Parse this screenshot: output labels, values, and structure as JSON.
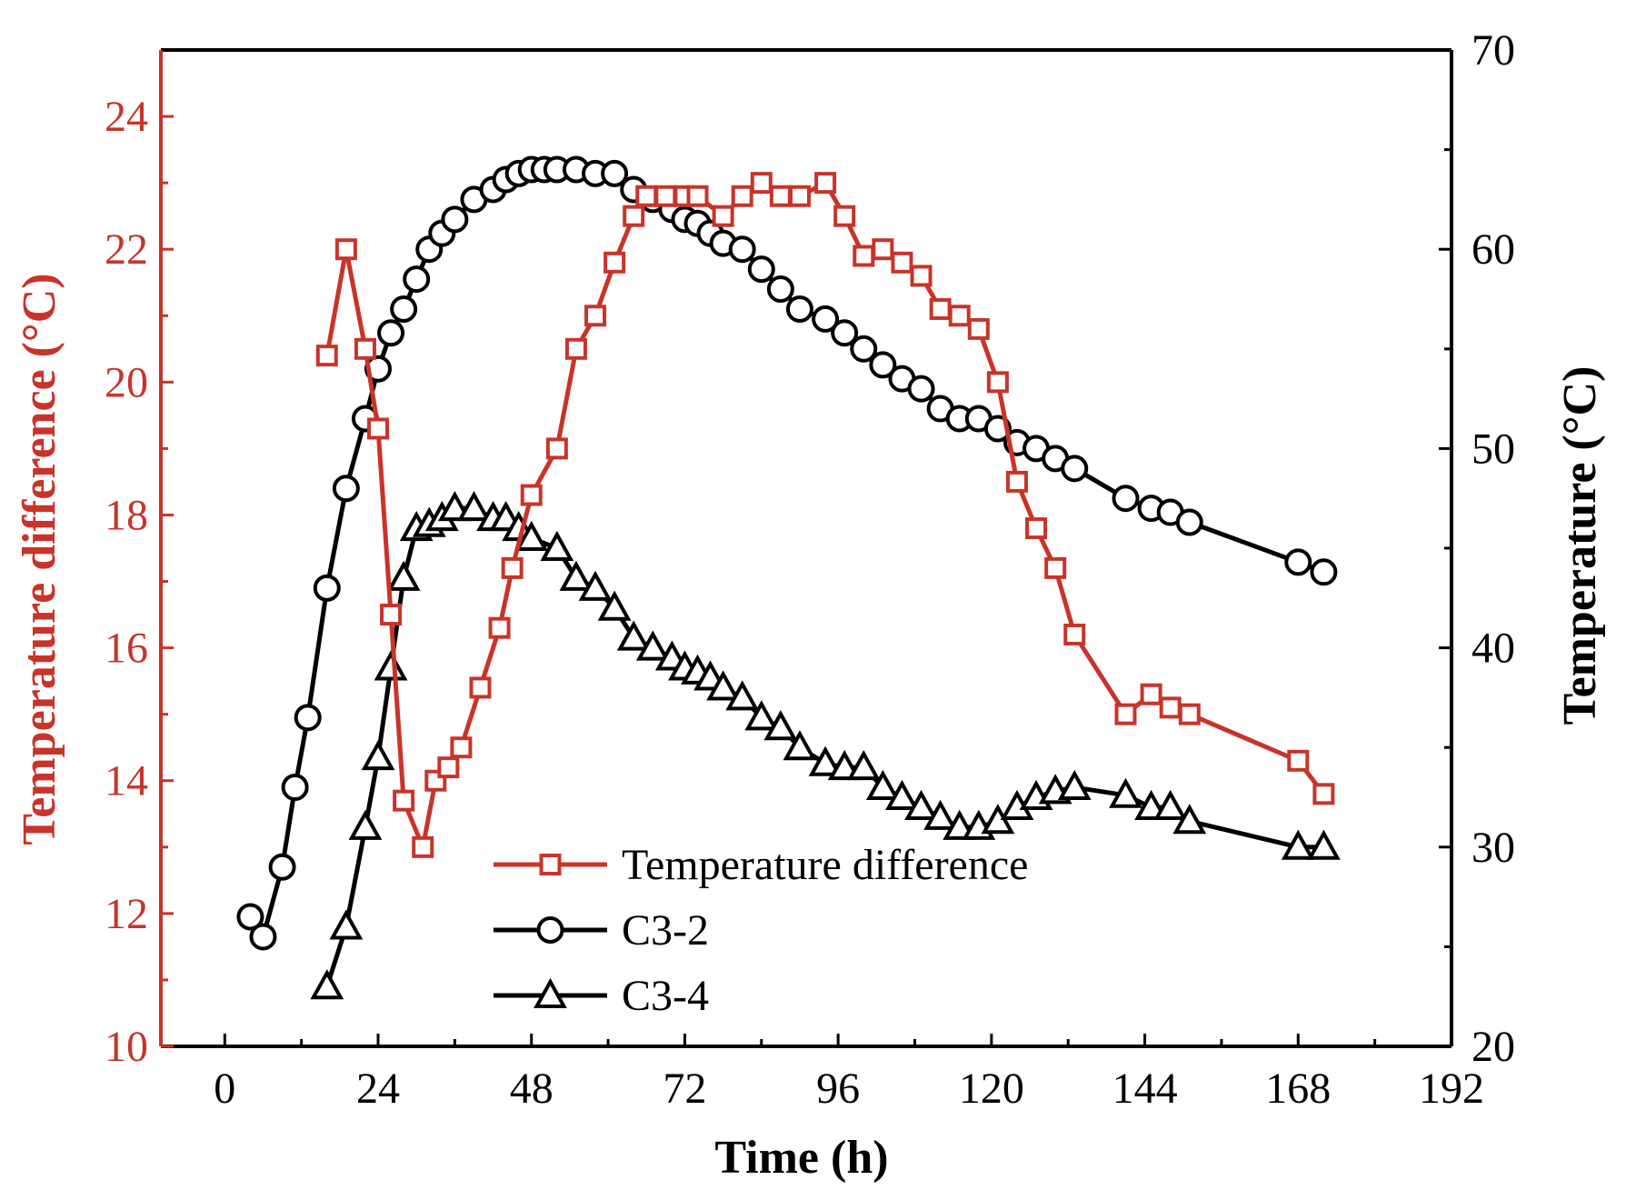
{
  "chart_data": {
    "type": "line",
    "title": "",
    "xlabel": "Time (h)",
    "ylabel_left": "Temperature difference (°C)",
    "ylabel_right": "Temperature (°C)",
    "xlim": [
      -10,
      192
    ],
    "ylim_left": [
      10,
      25
    ],
    "ylim_right": [
      20,
      70
    ],
    "x_ticks": [
      0,
      24,
      48,
      72,
      96,
      120,
      144,
      168,
      192
    ],
    "y_ticks_left": [
      10,
      12,
      14,
      16,
      18,
      20,
      22,
      24
    ],
    "y_ticks_right": [
      20,
      30,
      40,
      50,
      60,
      70
    ],
    "grid": false,
    "legend_position": "bottom-center",
    "colors": {
      "left_axis": "#c8342a",
      "right_axis": "#000000",
      "temperature_difference": "#c8342a",
      "c3_2": "#000000",
      "c3_4": "#000000"
    },
    "series": [
      {
        "name": "Temperature difference",
        "axis": "left",
        "marker": "square",
        "color": "#c8342a",
        "x": [
          16,
          19,
          22,
          24,
          26,
          28,
          31,
          33,
          35,
          37,
          40,
          43,
          45,
          48,
          52,
          55,
          58,
          61,
          64,
          66,
          69,
          72,
          74,
          78,
          81,
          84,
          87,
          90,
          94,
          97,
          100,
          103,
          106,
          109,
          112,
          115,
          118,
          121,
          124,
          127,
          130,
          133,
          141,
          145,
          148,
          151,
          168,
          172
        ],
        "values": [
          20.4,
          22.0,
          20.5,
          19.3,
          16.5,
          13.7,
          13.0,
          14.0,
          14.2,
          14.5,
          15.4,
          16.3,
          17.2,
          18.3,
          19.0,
          20.5,
          21.0,
          21.8,
          22.5,
          22.8,
          22.8,
          22.8,
          22.8,
          22.5,
          22.8,
          23.0,
          22.8,
          22.8,
          23.0,
          22.5,
          21.9,
          22.0,
          21.8,
          21.6,
          21.1,
          21.0,
          20.8,
          20.0,
          18.5,
          17.8,
          17.2,
          16.2,
          15.0,
          15.3,
          15.1,
          15.0,
          14.3,
          13.8
        ]
      },
      {
        "name": "C3-2",
        "axis": "right",
        "marker": "circle",
        "color": "#000000",
        "x": [
          4,
          6,
          9,
          11,
          13,
          16,
          19,
          22,
          24,
          26,
          28,
          30,
          32,
          34,
          36,
          39,
          42,
          44,
          46,
          48,
          50,
          52,
          55,
          58,
          61,
          64,
          67,
          70,
          72,
          74,
          76,
          78,
          81,
          84,
          87,
          90,
          94,
          97,
          100,
          103,
          106,
          109,
          112,
          115,
          118,
          121,
          124,
          127,
          130,
          133,
          141,
          145,
          148,
          151,
          168,
          172
        ],
        "values": [
          26.5,
          25.5,
          29.0,
          33.0,
          36.5,
          43.0,
          48.0,
          51.5,
          54.0,
          55.8,
          57.0,
          58.5,
          60.0,
          60.8,
          61.5,
          62.5,
          63.0,
          63.5,
          63.8,
          64.0,
          64.0,
          64.0,
          64.0,
          63.8,
          63.8,
          63.0,
          62.5,
          62.0,
          61.5,
          61.3,
          60.8,
          60.3,
          60.0,
          59.0,
          58.0,
          57.0,
          56.5,
          55.8,
          55.0,
          54.2,
          53.5,
          53.0,
          52.0,
          51.5,
          51.5,
          51.0,
          50.3,
          50.0,
          49.5,
          49.0,
          47.5,
          47.0,
          46.8,
          46.3,
          44.3,
          43.8
        ]
      },
      {
        "name": "C3-4",
        "axis": "right",
        "marker": "triangle",
        "color": "#000000",
        "x": [
          16,
          19,
          22,
          24,
          26,
          28,
          30,
          32,
          34,
          36,
          39,
          42,
          44,
          46,
          48,
          52,
          55,
          58,
          61,
          64,
          67,
          70,
          72,
          74,
          76,
          78,
          81,
          84,
          87,
          90,
          94,
          97,
          100,
          103,
          106,
          109,
          112,
          115,
          118,
          121,
          124,
          127,
          130,
          133,
          141,
          145,
          148,
          151,
          168,
          172
        ],
        "values": [
          23.0,
          26.0,
          31.0,
          34.5,
          39.0,
          43.5,
          46.0,
          46.2,
          46.5,
          47.0,
          47.0,
          46.5,
          46.5,
          46.0,
          45.5,
          45.0,
          43.5,
          43.0,
          42.0,
          40.5,
          40.0,
          39.5,
          39.0,
          38.8,
          38.5,
          38.0,
          37.5,
          36.5,
          36.0,
          35.0,
          34.2,
          34.0,
          34.0,
          33.0,
          32.5,
          32.0,
          31.5,
          31.0,
          31.0,
          31.3,
          32.0,
          32.5,
          32.8,
          33.0,
          32.6,
          32.0,
          32.0,
          31.3,
          30.0,
          30.0
        ]
      }
    ]
  }
}
